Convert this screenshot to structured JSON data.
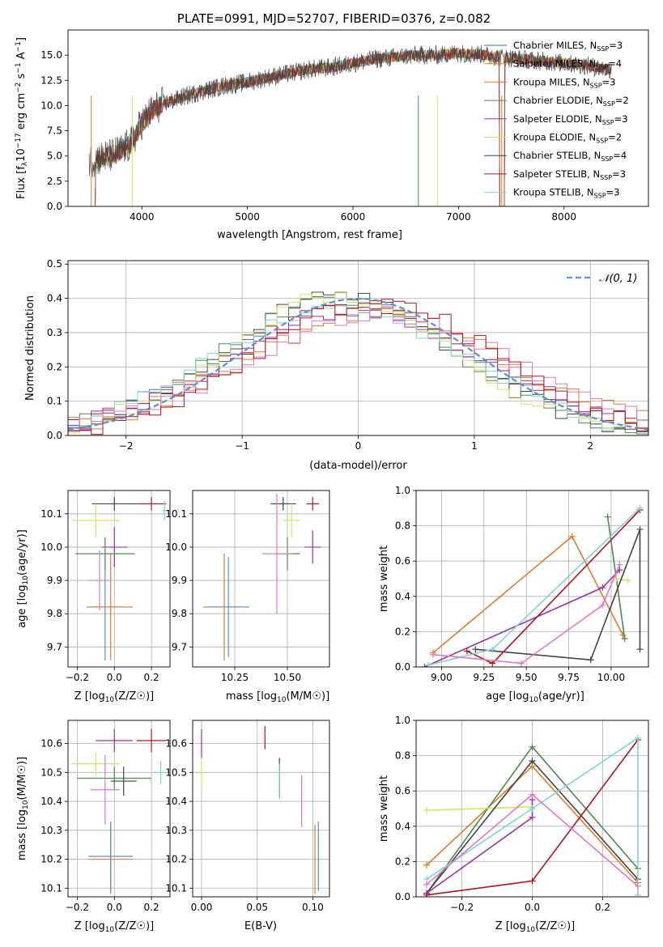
{
  "chart_data": [
    {
      "id": "spectrum",
      "type": "line",
      "title": "PLATE=0991, MJD=52707, FIBERID=0376, z=0.082",
      "xlabel": "wavelength [Angstrom, rest frame]",
      "ylabel": "Flux [f_λ 10^-17 erg cm^-2 s^-1 A^-1]",
      "ylabel_parts": {
        "main": "Flux [f",
        "sub_lambda": "λ",
        "mid": "10",
        "sup_exp": "−17",
        "post": " erg cm",
        "sup_cm": "−2",
        "mid2": " s",
        "sup_s": "−1",
        "tail": " A",
        "sup_a": "−1",
        "end": "]"
      },
      "xlim": [
        3300,
        8800
      ],
      "ylim": [
        0,
        17.5
      ],
      "xticks": [
        4000,
        5000,
        6000,
        7000,
        8000
      ],
      "yticks": [
        0.0,
        2.5,
        5.0,
        7.5,
        10.0,
        12.5,
        15.0
      ],
      "continuum": {
        "x": [
          3500,
          3600,
          3700,
          3800,
          3900,
          4000,
          4100,
          4200,
          4300,
          4400,
          4600,
          4800,
          5000,
          5200,
          5400,
          5600,
          5800,
          6000,
          6200,
          6400,
          6600,
          6800,
          7000,
          7200,
          7400,
          7600,
          7800,
          8000,
          8200,
          8400
        ],
        "y": [
          4.5,
          4.8,
          5.0,
          5.5,
          6.2,
          8.3,
          9.5,
          10.2,
          10.5,
          10.9,
          11.5,
          12.0,
          12.3,
          12.8,
          13.2,
          13.6,
          13.8,
          14.2,
          14.6,
          14.8,
          15.0,
          15.0,
          15.2,
          15.1,
          14.8,
          14.6,
          14.4,
          14.2,
          14.0,
          13.6
        ]
      },
      "data_range": [
        3500,
        8450
      ],
      "legend_location": "upper right",
      "series": [
        {
          "name": "Chabrier MILES",
          "nssp": "3",
          "color": "#1f77b4"
        },
        {
          "name": "Salpeter MILES",
          "nssp": "4",
          "color": "#ff7f0e"
        },
        {
          "name": "Kroupa MILES",
          "nssp": "3",
          "color": "#e07b29"
        },
        {
          "name": "Chabrier ELODIE",
          "nssp": "2",
          "color": "#4f8a4f"
        },
        {
          "name": "Salpeter ELODIE",
          "nssp": "3",
          "color": "#9b30b0"
        },
        {
          "name": "Kroupa ELODIE",
          "nssp": "2",
          "color": "#d4e55a"
        },
        {
          "name": "Chabrier STELIB",
          "nssp": "4",
          "color": "#444444"
        },
        {
          "name": "Salpeter STELIB",
          "nssp": "3",
          "color": "#b0151a"
        },
        {
          "name": "Kroupa STELIB",
          "nssp": "3",
          "color": "#7fd3d8"
        }
      ],
      "legend_nssp_label": "N",
      "legend_nssp_sub": "SSP"
    },
    {
      "id": "residuals",
      "type": "histogram",
      "xlabel": "(data-model)/error",
      "ylabel": "Normed distribution",
      "xlim": [
        -2.5,
        2.5
      ],
      "ylim": [
        0,
        0.51
      ],
      "xticks": [
        -2,
        -1,
        0,
        1,
        2
      ],
      "yticks": [
        0.0,
        0.1,
        0.2,
        0.3,
        0.4,
        0.5
      ],
      "grid": true,
      "legend_entry": "𝒩(0, 1)",
      "legend_location": "upper right",
      "normal_curve": {
        "mean": 0,
        "sigma": 1,
        "color": "#5b8fd6"
      },
      "bin_width": 0.1,
      "series_colors": [
        "#444444",
        "#b0151a",
        "#e07b29",
        "#4f8a4f",
        "#9b30b0",
        "#d4e55a",
        "#7fd3d8",
        "#e377c2",
        "#b0151a"
      ]
    },
    {
      "id": "age-vs-z",
      "type": "errorbar",
      "xlabel": "Z [log10(Z/Z⊙)]",
      "ylabel": "age  [log10(age/yr)]",
      "xlim": [
        -0.25,
        0.3
      ],
      "ylim": [
        9.64,
        10.17
      ],
      "xticks": [
        -0.2,
        0.0,
        0.2
      ],
      "yticks": [
        9.7,
        9.8,
        9.9,
        10.0,
        10.1
      ],
      "grid": true,
      "points": [
        {
          "x": 0.0,
          "y": 10.13,
          "xerr": 0.12,
          "yerr": 0.02,
          "color": "#444444"
        },
        {
          "x": 0.2,
          "y": 10.13,
          "xerr": 0.08,
          "yerr": 0.02,
          "color": "#b0151a"
        },
        {
          "x": -0.1,
          "y": 10.08,
          "xerr": 0.13,
          "yerr": 0.05,
          "color": "#d4e55a"
        },
        {
          "x": 0.27,
          "y": 10.11,
          "xerr": 0.01,
          "yerr": 0.03,
          "color": "#7fd3d8"
        },
        {
          "x": 0.0,
          "y": 10.0,
          "xerr": 0.07,
          "yerr": 0.06,
          "color": "#9b30b0"
        },
        {
          "x": -0.05,
          "y": 9.98,
          "xerr": 0.16,
          "yerr": 0.05,
          "color": "#4f8a4f"
        },
        {
          "x": -0.05,
          "y": 9.82,
          "xerr": 0.1,
          "yerr": 0.16,
          "color": "#5b8fd6"
        },
        {
          "x": -0.02,
          "y": 9.82,
          "xerr": 0.12,
          "yerr": 0.16,
          "color": "#e07b29"
        },
        {
          "x": -0.08,
          "y": 9.9,
          "xerr": 0.06,
          "yerr": 0.09,
          "color": "#e377c2"
        }
      ]
    },
    {
      "id": "age-vs-mass",
      "type": "errorbar",
      "xlabel": "mass [log10(M/M⊙)]",
      "xlim": [
        10.05,
        10.7
      ],
      "ylim": [
        9.64,
        10.17
      ],
      "xticks": [
        10.25,
        10.5
      ],
      "yticks": [
        9.7,
        9.8,
        9.9,
        10.0,
        10.1
      ],
      "grid": true,
      "points": [
        {
          "x": 10.48,
          "y": 10.13,
          "xerr": 0.06,
          "yerr": 0.02,
          "color": "#444444"
        },
        {
          "x": 10.62,
          "y": 10.13,
          "xerr": 0.03,
          "yerr": 0.02,
          "color": "#b0151a"
        },
        {
          "x": 10.52,
          "y": 10.08,
          "xerr": 0.04,
          "yerr": 0.05,
          "color": "#d4e55a"
        },
        {
          "x": 10.5,
          "y": 9.98,
          "xerr": 0.06,
          "yerr": 0.05,
          "color": "#4f8a4f"
        },
        {
          "x": 10.62,
          "y": 10.0,
          "xerr": 0.04,
          "yerr": 0.05,
          "color": "#9b30b0"
        },
        {
          "x": 10.45,
          "y": 9.98,
          "xerr": 0.07,
          "yerr": 0.18,
          "color": "#e377c2"
        },
        {
          "x": 10.2,
          "y": 9.82,
          "xerr": 0.1,
          "yerr": 0.16,
          "color": "#e07b29"
        },
        {
          "x": 10.22,
          "y": 9.82,
          "xerr": 0.1,
          "yerr": 0.15,
          "color": "#5b8fd6"
        }
      ]
    },
    {
      "id": "massweight-vs-age",
      "type": "line",
      "xlabel": "age  [log10(age/yr)]",
      "ylabel": "mass weight",
      "xlim": [
        8.85,
        10.22
      ],
      "ylim": [
        0,
        1.0
      ],
      "xticks": [
        9.0,
        9.25,
        9.5,
        9.75,
        10.0
      ],
      "yticks": [
        0.0,
        0.2,
        0.4,
        0.6,
        0.8,
        1.0
      ],
      "grid": true,
      "series": [
        {
          "color": "#e07b29",
          "x": [
            8.95,
            9.77,
            10.07
          ],
          "y": [
            0.08,
            0.74,
            0.18
          ]
        },
        {
          "color": "#4f8a4f",
          "x": [
            9.98,
            10.08
          ],
          "y": [
            0.85,
            0.16
          ]
        },
        {
          "color": "#d4e55a",
          "x": [
            10.03,
            10.1
          ],
          "y": [
            0.5,
            0.49
          ]
        },
        {
          "color": "#444444",
          "x": [
            9.2,
            9.88,
            10.17,
            10.17
          ],
          "y": [
            0.1,
            0.04,
            0.78,
            0.1
          ]
        },
        {
          "color": "#9b30b0",
          "x": [
            8.9,
            9.95,
            10.05
          ],
          "y": [
            0.0,
            0.45,
            0.55
          ]
        },
        {
          "color": "#b0151a",
          "x": [
            9.15,
            9.3,
            10.17
          ],
          "y": [
            0.09,
            0.02,
            0.89
          ]
        },
        {
          "color": "#7fd3d8",
          "x": [
            8.92,
            9.3,
            10.17
          ],
          "y": [
            0.01,
            0.1,
            0.9
          ]
        },
        {
          "color": "#e377c2",
          "x": [
            8.95,
            9.47,
            9.95,
            10.05
          ],
          "y": [
            0.07,
            0.02,
            0.35,
            0.58
          ]
        }
      ]
    },
    {
      "id": "mass-vs-z",
      "type": "errorbar",
      "xlabel": "Z [log10(Z/Z⊙)]",
      "ylabel": "mass [log10(M/M⊙)]",
      "xlim": [
        -0.25,
        0.3
      ],
      "ylim": [
        10.07,
        10.68
      ],
      "xticks": [
        -0.2,
        0.0,
        0.2
      ],
      "yticks": [
        10.1,
        10.2,
        10.3,
        10.4,
        10.5,
        10.6
      ],
      "grid": true,
      "points": [
        {
          "x": 0.0,
          "y": 10.61,
          "xerr": 0.1,
          "yerr": 0.04,
          "color": "#9b30b0"
        },
        {
          "x": 0.2,
          "y": 10.61,
          "xerr": 0.08,
          "yerr": 0.04,
          "color": "#b0151a"
        },
        {
          "x": -0.1,
          "y": 10.53,
          "xerr": 0.13,
          "yerr": 0.04,
          "color": "#d4e55a"
        },
        {
          "x": 0.25,
          "y": 10.5,
          "xerr": 0.04,
          "yerr": 0.04,
          "color": "#7fd3d8"
        },
        {
          "x": 0.0,
          "y": 10.48,
          "xerr": 0.2,
          "yerr": 0.04,
          "color": "#4f8a4f"
        },
        {
          "x": 0.05,
          "y": 10.47,
          "xerr": 0.07,
          "yerr": 0.05,
          "color": "#444444"
        },
        {
          "x": -0.05,
          "y": 10.44,
          "xerr": 0.08,
          "yerr": 0.12,
          "color": "#e377c2"
        },
        {
          "x": -0.02,
          "y": 10.2,
          "xerr": 0.12,
          "yerr": 0.12,
          "color": "#e07b29"
        },
        {
          "x": -0.02,
          "y": 10.21,
          "xerr": 0.12,
          "yerr": 0.12,
          "color": "#5b8fd6"
        }
      ]
    },
    {
      "id": "mass-vs-ebv",
      "type": "errorbar",
      "xlabel": "E(B-V)",
      "xlim": [
        -0.008,
        0.115
      ],
      "ylim": [
        10.07,
        10.68
      ],
      "xticks": [
        0.0,
        0.05,
        0.1
      ],
      "yticks": [
        10.1,
        10.2,
        10.3,
        10.4,
        10.5,
        10.6
      ],
      "grid": true,
      "points": [
        {
          "x": 0.0,
          "y": 10.6,
          "yerr": 0.05,
          "color": "#9b30b0"
        },
        {
          "x": 0.0,
          "y": 10.5,
          "yerr": 0.05,
          "color": "#d4e55a"
        },
        {
          "x": 0.057,
          "y": 10.62,
          "yerr": 0.04,
          "color": "#b0151a"
        },
        {
          "x": 0.07,
          "y": 10.48,
          "yerr": 0.07,
          "color": "#444444"
        },
        {
          "x": 0.07,
          "y": 10.47,
          "yerr": 0.06,
          "color": "#7fd3d8"
        },
        {
          "x": 0.09,
          "y": 10.4,
          "yerr": 0.09,
          "color": "#e377c2"
        },
        {
          "x": 0.102,
          "y": 10.2,
          "yerr": 0.12,
          "color": "#e07b29"
        },
        {
          "x": 0.105,
          "y": 10.21,
          "yerr": 0.12,
          "color": "#5b8fd6"
        }
      ]
    },
    {
      "id": "massweight-vs-z",
      "type": "line",
      "xlabel": "Z [log10(Z/Z⊙)]",
      "ylabel": "mass weight",
      "xlim": [
        -0.33,
        0.33
      ],
      "ylim": [
        0,
        1.0
      ],
      "xticks": [
        -0.2,
        0.0,
        0.2
      ],
      "yticks": [
        0.0,
        0.2,
        0.4,
        0.6,
        0.8,
        1.0
      ],
      "grid": true,
      "series": [
        {
          "color": "#e07b29",
          "x": [
            -0.3,
            0.0,
            0.3
          ],
          "y": [
            0.18,
            0.74,
            0.08
          ]
        },
        {
          "color": "#4f8a4f",
          "x": [
            -0.3,
            0.0,
            0.3
          ],
          "y": [
            0.02,
            0.85,
            0.16
          ]
        },
        {
          "color": "#d4e55a",
          "x": [
            -0.3,
            0.0
          ],
          "y": [
            0.49,
            0.51
          ]
        },
        {
          "color": "#444444",
          "x": [
            -0.3,
            0.0,
            0.3
          ],
          "y": [
            0.02,
            0.77,
            0.1
          ]
        },
        {
          "color": "#9b30b0",
          "x": [
            -0.3,
            0.0,
            0.0
          ],
          "y": [
            0.02,
            0.45,
            0.55
          ]
        },
        {
          "color": "#b0151a",
          "x": [
            -0.3,
            0.0,
            0.3
          ],
          "y": [
            0.01,
            0.09,
            0.89
          ]
        },
        {
          "color": "#7fd3d8",
          "x": [
            -0.3,
            0.0,
            0.3,
            0.3
          ],
          "y": [
            0.1,
            0.5,
            0.9,
            0.01
          ]
        },
        {
          "color": "#e377c2",
          "x": [
            -0.3,
            0.0,
            0.3
          ],
          "y": [
            0.07,
            0.58,
            0.06
          ]
        }
      ]
    }
  ]
}
